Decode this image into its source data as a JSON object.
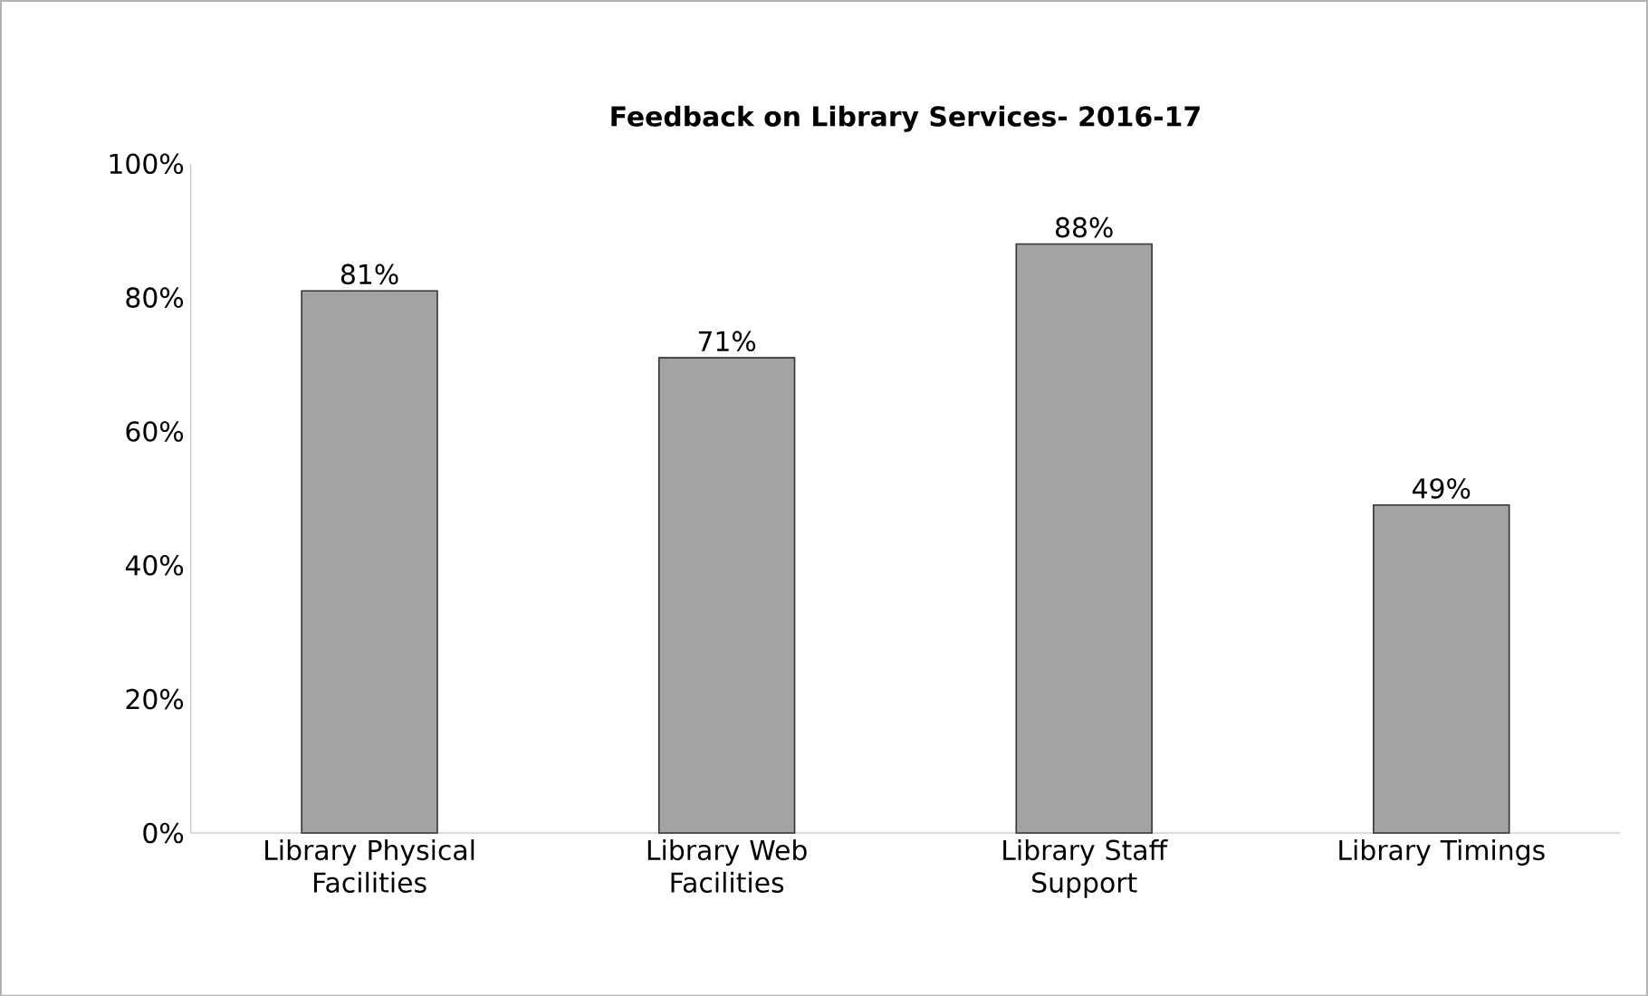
{
  "chart_data": {
    "type": "bar",
    "title": "Feedback on Library Services- 2016-17",
    "categories": [
      "Library Physical Facilities",
      "Library Web Facilities",
      "Library Staff Support",
      "Library Timings"
    ],
    "values": [
      81,
      71,
      88,
      49
    ],
    "value_labels": [
      "81%",
      "71%",
      "88%",
      "49%"
    ],
    "color": "#a3a3a3",
    "ylim": [
      0,
      100
    ],
    "yticks": [
      {
        "value": 0,
        "label": "0%"
      },
      {
        "value": 20,
        "label": "20%"
      },
      {
        "value": 40,
        "label": "40%"
      },
      {
        "value": 60,
        "label": "60%"
      },
      {
        "value": 80,
        "label": "80%"
      },
      {
        "value": 100,
        "label": "100%"
      }
    ],
    "grid": false
  }
}
